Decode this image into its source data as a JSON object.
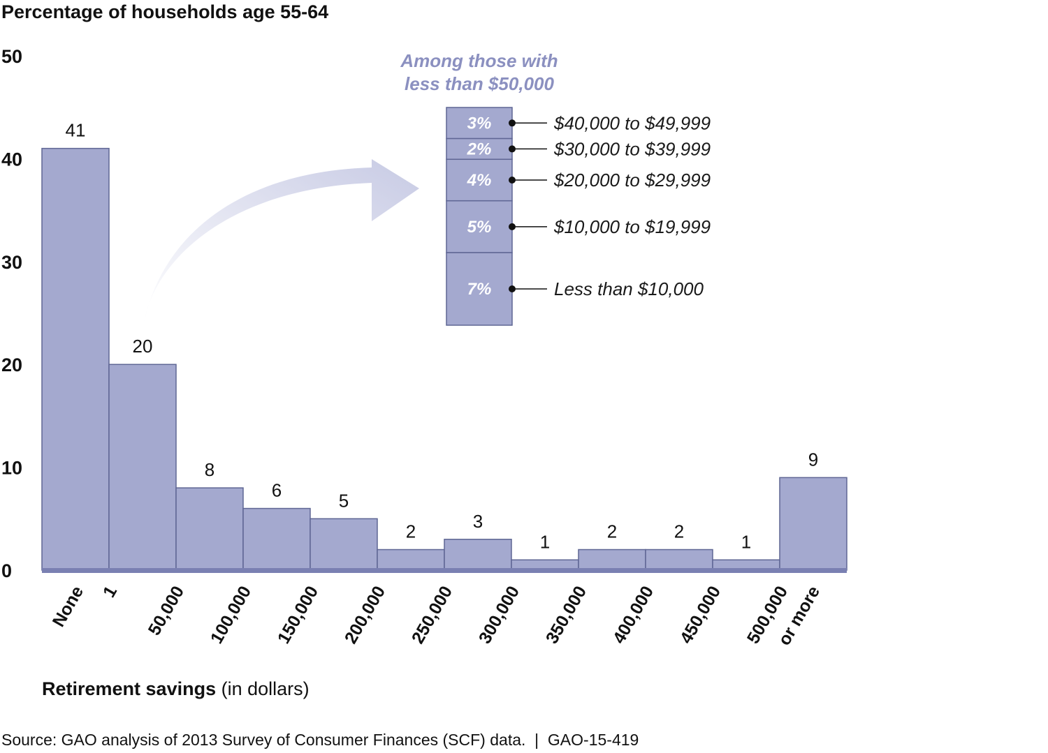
{
  "chart_data": {
    "type": "bar",
    "title": "Percentage of households age 55-64",
    "ylabel": "Percentage of households age 55-64",
    "xlabel_bold": "Retirement savings",
    "xlabel_rest": " (in dollars)",
    "ylim": [
      0,
      50
    ],
    "yticks": [
      0,
      10,
      20,
      30,
      40,
      50
    ],
    "bin_edge_labels": [
      "None",
      "1",
      "50,000",
      "100,000",
      "150,000",
      "200,000",
      "250,000",
      "300,000",
      "350,000",
      "400,000",
      "450,000",
      "500,000",
      "or more"
    ],
    "categories": [
      "None",
      "1 to 50,000",
      "50,000 to 100,000",
      "100,000 to 150,000",
      "150,000 to 200,000",
      "200,000 to 250,000",
      "250,000 to 300,000",
      "300,000 to 350,000",
      "350,000 to 400,000",
      "400,000 to 450,000",
      "450,000 to 500,000",
      "500,000 or more"
    ],
    "values": [
      41,
      20,
      8,
      6,
      5,
      2,
      3,
      1,
      2,
      2,
      1,
      9
    ],
    "value_labels": [
      "41",
      "20",
      "8",
      "6",
      "5",
      "2",
      "3",
      "1",
      "2",
      "2",
      "1",
      "9"
    ],
    "inset": {
      "title_line1": "Among those with",
      "title_line2": "less than $50,000",
      "segments": [
        {
          "label": "$40,000 to $49,999",
          "value": 3,
          "text": "3%"
        },
        {
          "label": "$30,000 to $39,999",
          "value": 2,
          "text": "2%"
        },
        {
          "label": "$20,000 to $29,999",
          "value": 4,
          "text": "4%"
        },
        {
          "label": "$10,000 to $19,999",
          "value": 5,
          "text": "5%"
        },
        {
          "label": "Less than $10,000",
          "value": 7,
          "text": "7%"
        }
      ]
    }
  },
  "source": "Source: GAO analysis of 2013 Survey of Consumer Finances (SCF) data.  |  GAO-15-419",
  "colors": {
    "bar_fill": "#a4a9cf",
    "bar_stroke": "#5f6694",
    "baseline": "#7a80b2",
    "inset_title": "#8b90c0",
    "arrow": "#c7cae4"
  }
}
